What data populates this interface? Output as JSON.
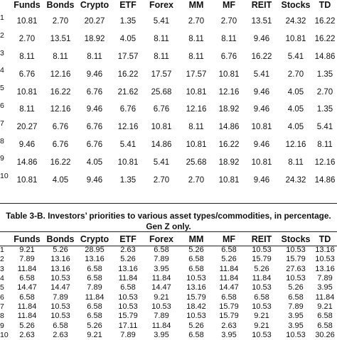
{
  "table_a": {
    "headers": [
      "",
      "Funds",
      "Bonds",
      "Crypto",
      "ETF",
      "Forex",
      "MM",
      "MF",
      "REIT",
      "Stocks",
      "TD"
    ],
    "rows": [
      {
        "rank": "1",
        "values": [
          "10.81",
          "2.70",
          "20.27",
          "1.35",
          "5.41",
          "2.70",
          "2.70",
          "13.51",
          "24.32",
          "16.22"
        ]
      },
      {
        "rank": "2",
        "values": [
          "2.70",
          "13.51",
          "18.92",
          "4.05",
          "8.11",
          "8.11",
          "8.11",
          "9.46",
          "10.81",
          "16.22"
        ]
      },
      {
        "rank": "3",
        "values": [
          "8.11",
          "8.11",
          "8.11",
          "17.57",
          "8.11",
          "8.11",
          "6.76",
          "16.22",
          "5.41",
          "14.86"
        ]
      },
      {
        "rank": "4",
        "values": [
          "6.76",
          "12.16",
          "9.46",
          "16.22",
          "17.57",
          "17.57",
          "10.81",
          "5.41",
          "2.70",
          "1.35"
        ]
      },
      {
        "rank": "5",
        "values": [
          "10.81",
          "16.22",
          "6.76",
          "21.62",
          "25.68",
          "10.81",
          "12.16",
          "9.46",
          "4.05",
          "2.70"
        ]
      },
      {
        "rank": "6",
        "values": [
          "8.11",
          "12.16",
          "9.46",
          "6.76",
          "6.76",
          "12.16",
          "18.92",
          "9.46",
          "4.05",
          "1.35"
        ]
      },
      {
        "rank": "7",
        "values": [
          "20.27",
          "6.76",
          "6.76",
          "12.16",
          "10.81",
          "8.11",
          "14.86",
          "10.81",
          "4.05",
          "5.41"
        ]
      },
      {
        "rank": "8",
        "values": [
          "9.46",
          "6.76",
          "6.76",
          "5.41",
          "14.86",
          "10.81",
          "16.22",
          "9.46",
          "12.16",
          "8.11"
        ]
      },
      {
        "rank": "9",
        "values": [
          "14.86",
          "16.22",
          "4.05",
          "10.81",
          "5.41",
          "25.68",
          "18.92",
          "10.81",
          "8.11",
          "12.16"
        ]
      },
      {
        "rank": "10",
        "values": [
          "10.81",
          "4.05",
          "9.46",
          "1.35",
          "2.70",
          "2.70",
          "10.81",
          "9.46",
          "24.32",
          "14.86"
        ]
      }
    ]
  },
  "caption": "Table 3-B. Investors’ priorities to various asset types/commodities, in percentage. Gen Z only.",
  "table_b": {
    "headers": [
      "",
      "Funds",
      "Bonds",
      "Crypto",
      "ETF",
      "Forex",
      "MM",
      "MF",
      "REIT",
      "Stocks",
      "TD"
    ],
    "rows": [
      {
        "rank": "1",
        "values": [
          "9.21",
          "5.26",
          "28.95",
          "2.63",
          "6.58",
          "5.26",
          "6.58",
          "10.53",
          "10.53",
          "13.16"
        ]
      },
      {
        "rank": "2",
        "values": [
          "7.89",
          "13.16",
          "13.16",
          "5.26",
          "7.89",
          "6.58",
          "5.26",
          "15.79",
          "15.79",
          "10.53"
        ]
      },
      {
        "rank": "3",
        "values": [
          "11.84",
          "13.16",
          "6.58",
          "13.16",
          "3.95",
          "6.58",
          "11.84",
          "5.26",
          "27.63",
          "13.16"
        ]
      },
      {
        "rank": "4",
        "values": [
          "6.58",
          "10.53",
          "6.58",
          "11.84",
          "11.84",
          "10.53",
          "11.84",
          "11.84",
          "10.53",
          "7.89"
        ]
      },
      {
        "rank": "5",
        "values": [
          "14.47",
          "14.47",
          "7.89",
          "6.58",
          "14.47",
          "13.16",
          "14.47",
          "10.53",
          "5.26",
          "3.95"
        ]
      },
      {
        "rank": "6",
        "values": [
          "6.58",
          "7.89",
          "11.84",
          "10.53",
          "9.21",
          "15.79",
          "6.58",
          "6.58",
          "6.58",
          "11.84"
        ]
      },
      {
        "rank": "7",
        "values": [
          "11.84",
          "10.53",
          "6.58",
          "10.53",
          "10.53",
          "18.42",
          "15.79",
          "10.53",
          "7.89",
          "9.21"
        ]
      },
      {
        "rank": "8",
        "values": [
          "11.84",
          "10.53",
          "6.58",
          "15.79",
          "7.89",
          "10.53",
          "15.79",
          "9.21",
          "3.95",
          "6.58"
        ]
      },
      {
        "rank": "9",
        "values": [
          "5.26",
          "6.58",
          "5.26",
          "17.11",
          "11.84",
          "5.26",
          "2.63",
          "9.21",
          "3.95",
          "6.58"
        ]
      },
      {
        "rank": "10",
        "values": [
          "2.63",
          "2.63",
          "9.21",
          "7.89",
          "3.95",
          "6.58",
          "3.95",
          "10.53",
          "10.53",
          "30.26"
        ]
      }
    ]
  }
}
